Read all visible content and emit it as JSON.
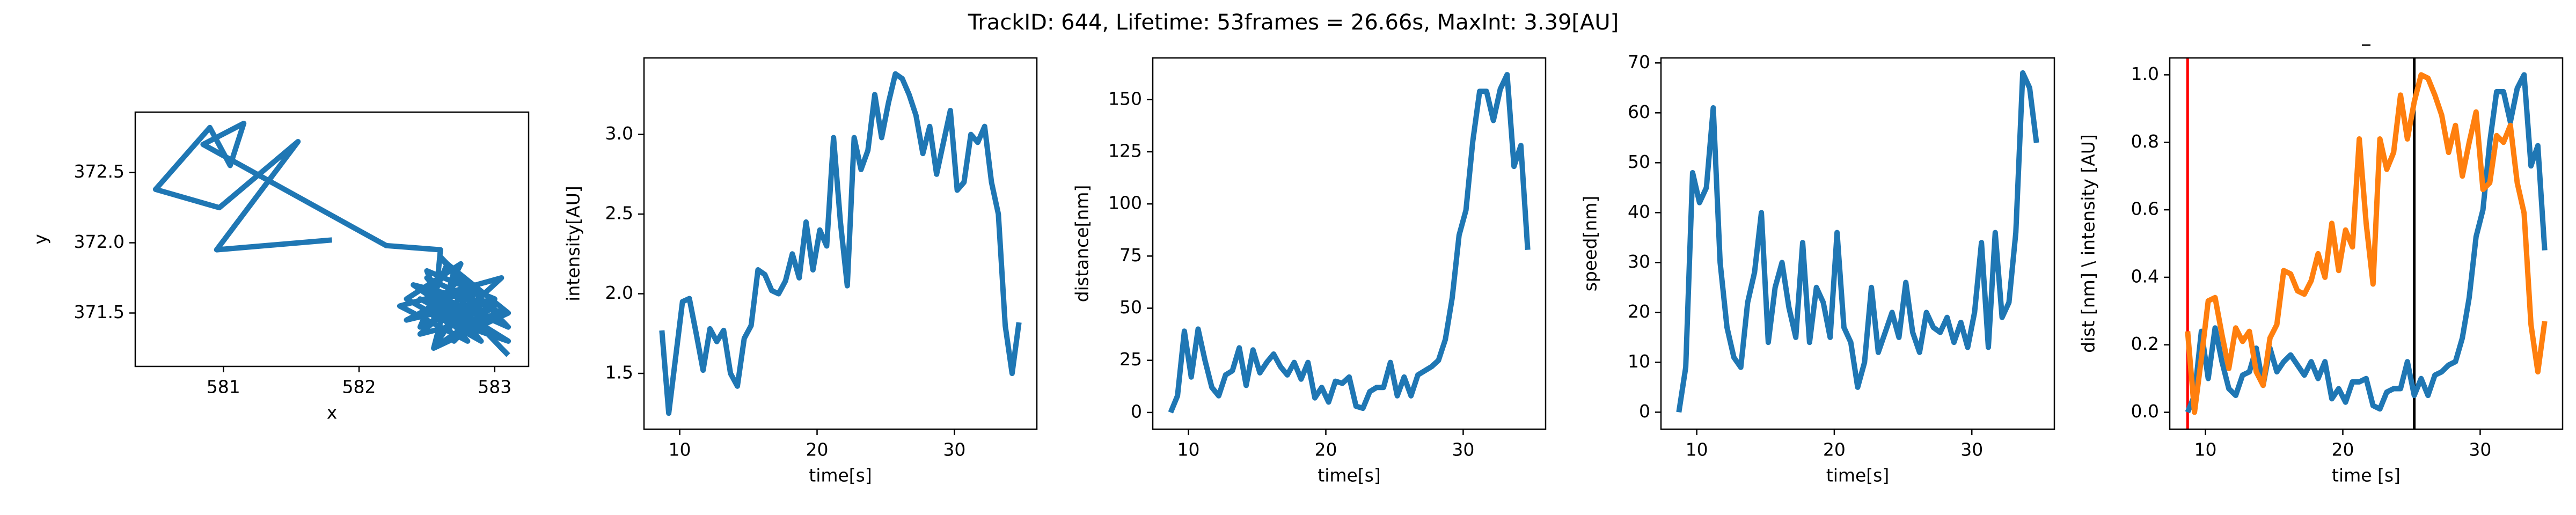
{
  "title": "TrackID: 644, Lifetime: 53frames = 26.66s, MaxInt: 3.39[AU]",
  "chart_data": [
    {
      "type": "line",
      "xlabel": "x",
      "ylabel": "y",
      "x": [
        581.8,
        580.95,
        581.55,
        580.97,
        580.5,
        580.9,
        581.05,
        581.15,
        580.85,
        582.2,
        582.6,
        582.55,
        582.75,
        582.35,
        582.9,
        582.5,
        583.05,
        582.45,
        582.8,
        582.6,
        583.1,
        582.4,
        582.95,
        582.7,
        582.5,
        583.0,
        582.35,
        582.85,
        582.55,
        583.1,
        582.65,
        582.45,
        582.9,
        582.6,
        583.05,
        582.3,
        582.8,
        582.5,
        582.95,
        582.7,
        582.55,
        583.0,
        582.4,
        582.85,
        582.6,
        583.1,
        582.5,
        582.75,
        582.95,
        582.45,
        582.85,
        583.05,
        583.1
      ],
      "series": [
        {
          "color": "#1f77b4",
          "values": [
            372.02,
            371.95,
            372.72,
            372.25,
            372.38,
            372.82,
            372.55,
            372.85,
            372.7,
            371.98,
            371.95,
            371.45,
            371.85,
            371.6,
            371.3,
            371.75,
            371.5,
            371.35,
            371.65,
            371.9,
            371.4,
            371.7,
            371.55,
            371.3,
            371.8,
            371.6,
            371.45,
            371.7,
            371.25,
            371.5,
            371.85,
            371.4,
            371.6,
            371.35,
            371.75,
            371.55,
            371.3,
            371.65,
            371.45,
            371.8,
            371.25,
            371.55,
            371.7,
            371.4,
            371.6,
            371.3,
            371.5,
            371.75,
            371.35,
            371.6,
            371.45,
            371.25,
            371.2
          ]
        }
      ],
      "xlim": [
        580.35,
        583.25
      ],
      "xticks": [
        581,
        582,
        583
      ],
      "ylim": [
        371.12,
        372.93
      ],
      "yticks": [
        371.5,
        {
          "value": 372.0,
          "label": "372.0"
        },
        372.5
      ]
    },
    {
      "type": "line",
      "xlabel": "time[s]",
      "ylabel": "intensity[AU]",
      "x": [
        8.7,
        9.2,
        9.7,
        10.2,
        10.7,
        11.2,
        11.7,
        12.2,
        12.7,
        13.2,
        13.7,
        14.2,
        14.7,
        15.2,
        15.7,
        16.2,
        16.7,
        17.2,
        17.7,
        18.2,
        18.7,
        19.2,
        19.7,
        20.2,
        20.7,
        21.2,
        21.7,
        22.2,
        22.7,
        23.2,
        23.7,
        24.2,
        24.7,
        25.2,
        25.7,
        26.2,
        26.7,
        27.2,
        27.7,
        28.2,
        28.7,
        29.2,
        29.7,
        30.2,
        30.7,
        31.2,
        31.7,
        32.2,
        32.7,
        33.2,
        33.7,
        34.2,
        34.7
      ],
      "series": [
        {
          "color": "#1f77b4",
          "values": [
            1.77,
            1.25,
            1.6,
            1.95,
            1.97,
            1.75,
            1.52,
            1.78,
            1.7,
            1.77,
            1.5,
            1.42,
            1.72,
            1.8,
            2.15,
            2.12,
            2.02,
            2.0,
            2.08,
            2.25,
            2.1,
            2.45,
            2.15,
            2.4,
            2.3,
            2.98,
            2.45,
            2.05,
            2.98,
            2.78,
            2.9,
            3.25,
            2.98,
            3.2,
            3.38,
            3.35,
            3.25,
            3.12,
            2.88,
            3.05,
            2.75,
            2.95,
            3.15,
            2.65,
            2.7,
            3.0,
            2.95,
            3.05,
            2.7,
            2.5,
            1.8,
            1.5,
            1.82
          ]
        }
      ],
      "xlim": [
        7.4,
        36.0
      ],
      "xticks": [
        10,
        20,
        30
      ],
      "ylim": [
        1.15,
        3.48
      ],
      "yticks": [
        1.5,
        {
          "value": 2.0,
          "label": "2.0"
        },
        2.5,
        {
          "value": 3.0,
          "label": "3.0"
        }
      ]
    },
    {
      "type": "line",
      "xlabel": "time[s]",
      "ylabel": "distance[nm]",
      "x": [
        8.7,
        9.2,
        9.7,
        10.2,
        10.7,
        11.2,
        11.7,
        12.2,
        12.7,
        13.2,
        13.7,
        14.2,
        14.7,
        15.2,
        15.7,
        16.2,
        16.7,
        17.2,
        17.7,
        18.2,
        18.7,
        19.2,
        19.7,
        20.2,
        20.7,
        21.2,
        21.7,
        22.2,
        22.7,
        23.2,
        23.7,
        24.2,
        24.7,
        25.2,
        25.7,
        26.2,
        26.7,
        27.2,
        27.7,
        28.2,
        28.7,
        29.2,
        29.7,
        30.2,
        30.7,
        31.2,
        31.7,
        32.2,
        32.7,
        33.2,
        33.7,
        34.2,
        34.7
      ],
      "series": [
        {
          "color": "#1f77b4",
          "values": [
            0,
            8,
            39,
            17,
            40,
            25,
            12,
            8,
            18,
            20,
            31,
            13,
            30,
            19,
            24,
            28,
            22,
            18,
            24,
            16,
            24,
            7,
            12,
            5,
            15,
            14,
            17,
            3,
            2,
            10,
            12,
            12,
            24,
            8,
            17,
            8,
            18,
            20,
            22,
            25,
            35,
            55,
            85,
            97,
            130,
            154,
            154,
            140,
            155,
            162,
            118,
            128,
            78
          ]
        }
      ],
      "xlim": [
        7.4,
        36.0
      ],
      "xticks": [
        10,
        20,
        30
      ],
      "ylim": [
        -8,
        170
      ],
      "yticks": [
        0,
        25,
        50,
        75,
        100,
        125,
        150
      ]
    },
    {
      "type": "line",
      "xlabel": "time[s]",
      "ylabel": "speed[nm]",
      "x": [
        8.7,
        9.2,
        9.7,
        10.2,
        10.7,
        11.2,
        11.7,
        12.2,
        12.7,
        13.2,
        13.7,
        14.2,
        14.7,
        15.2,
        15.7,
        16.2,
        16.7,
        17.2,
        17.7,
        18.2,
        18.7,
        19.2,
        19.7,
        20.2,
        20.7,
        21.2,
        21.7,
        22.2,
        22.7,
        23.2,
        23.7,
        24.2,
        24.7,
        25.2,
        25.7,
        26.2,
        26.7,
        27.2,
        27.7,
        28.2,
        28.7,
        29.2,
        29.7,
        30.2,
        30.7,
        31.2,
        31.7,
        32.2,
        32.7,
        33.2,
        33.7,
        34.2,
        34.7
      ],
      "series": [
        {
          "color": "#1f77b4",
          "values": [
            0,
            9,
            48,
            42,
            45,
            61,
            30,
            17,
            11,
            9,
            22,
            28,
            40,
            14,
            25,
            30,
            21,
            15,
            34,
            14,
            25,
            22,
            15,
            36,
            17,
            14,
            5,
            10,
            25,
            12,
            16,
            20,
            15,
            26,
            16,
            12,
            20,
            17,
            16,
            19,
            14,
            18,
            13,
            20,
            34,
            13,
            36,
            19,
            22,
            36,
            68,
            65,
            54
          ]
        }
      ],
      "xlim": [
        7.4,
        36.0
      ],
      "xticks": [
        10,
        20,
        30
      ],
      "ylim": [
        -3.4,
        71
      ],
      "yticks": [
        0,
        10,
        20,
        30,
        40,
        50,
        60,
        70
      ]
    },
    {
      "type": "line",
      "title": "–",
      "xlabel": "time [s]",
      "ylabel": "dist [nm] \\ intensity [AU]",
      "x": [
        8.7,
        9.2,
        9.7,
        10.2,
        10.7,
        11.2,
        11.7,
        12.2,
        12.7,
        13.2,
        13.7,
        14.2,
        14.7,
        15.2,
        15.7,
        16.2,
        16.7,
        17.2,
        17.7,
        18.2,
        18.7,
        19.2,
        19.7,
        20.2,
        20.7,
        21.2,
        21.7,
        22.2,
        22.7,
        23.2,
        23.7,
        24.2,
        24.7,
        25.2,
        25.7,
        26.2,
        26.7,
        27.2,
        27.7,
        28.2,
        28.7,
        29.2,
        29.7,
        30.2,
        30.7,
        31.2,
        31.7,
        32.2,
        32.7,
        33.2,
        33.7,
        34.2,
        34.7
      ],
      "series": [
        {
          "color": "#1f77b4",
          "values": [
            0,
            0.05,
            0.24,
            0.1,
            0.25,
            0.15,
            0.07,
            0.05,
            0.11,
            0.12,
            0.19,
            0.08,
            0.19,
            0.12,
            0.15,
            0.17,
            0.14,
            0.11,
            0.15,
            0.1,
            0.15,
            0.04,
            0.07,
            0.03,
            0.09,
            0.09,
            0.1,
            0.02,
            0.01,
            0.06,
            0.07,
            0.07,
            0.15,
            0.05,
            0.1,
            0.05,
            0.11,
            0.12,
            0.14,
            0.15,
            0.22,
            0.34,
            0.52,
            0.6,
            0.8,
            0.95,
            0.95,
            0.86,
            0.96,
            1.0,
            0.73,
            0.79,
            0.48
          ]
        },
        {
          "color": "#ff7f0e",
          "values": [
            0.24,
            0,
            0.16,
            0.33,
            0.34,
            0.23,
            0.13,
            0.25,
            0.21,
            0.24,
            0.12,
            0.08,
            0.22,
            0.26,
            0.42,
            0.41,
            0.36,
            0.35,
            0.39,
            0.47,
            0.4,
            0.56,
            0.42,
            0.54,
            0.49,
            0.81,
            0.56,
            0.38,
            0.81,
            0.72,
            0.77,
            0.94,
            0.81,
            0.92,
            1.0,
            0.99,
            0.94,
            0.88,
            0.77,
            0.85,
            0.7,
            0.8,
            0.89,
            0.66,
            0.68,
            0.82,
            0.8,
            0.85,
            0.68,
            0.59,
            0.26,
            0.12,
            0.27
          ]
        }
      ],
      "vlines": [
        {
          "x": 8.7,
          "color": "#ff0000"
        },
        {
          "x": 25.2,
          "color": "#000000"
        }
      ],
      "xlim": [
        7.4,
        36.0
      ],
      "xticks": [
        10,
        20,
        30
      ],
      "ylim": [
        -0.05,
        1.05
      ],
      "yticks": [
        {
          "value": 0.0,
          "label": "0.0"
        },
        0.2,
        0.4,
        0.6,
        0.8,
        {
          "value": 1.0,
          "label": "1.0"
        }
      ]
    }
  ]
}
